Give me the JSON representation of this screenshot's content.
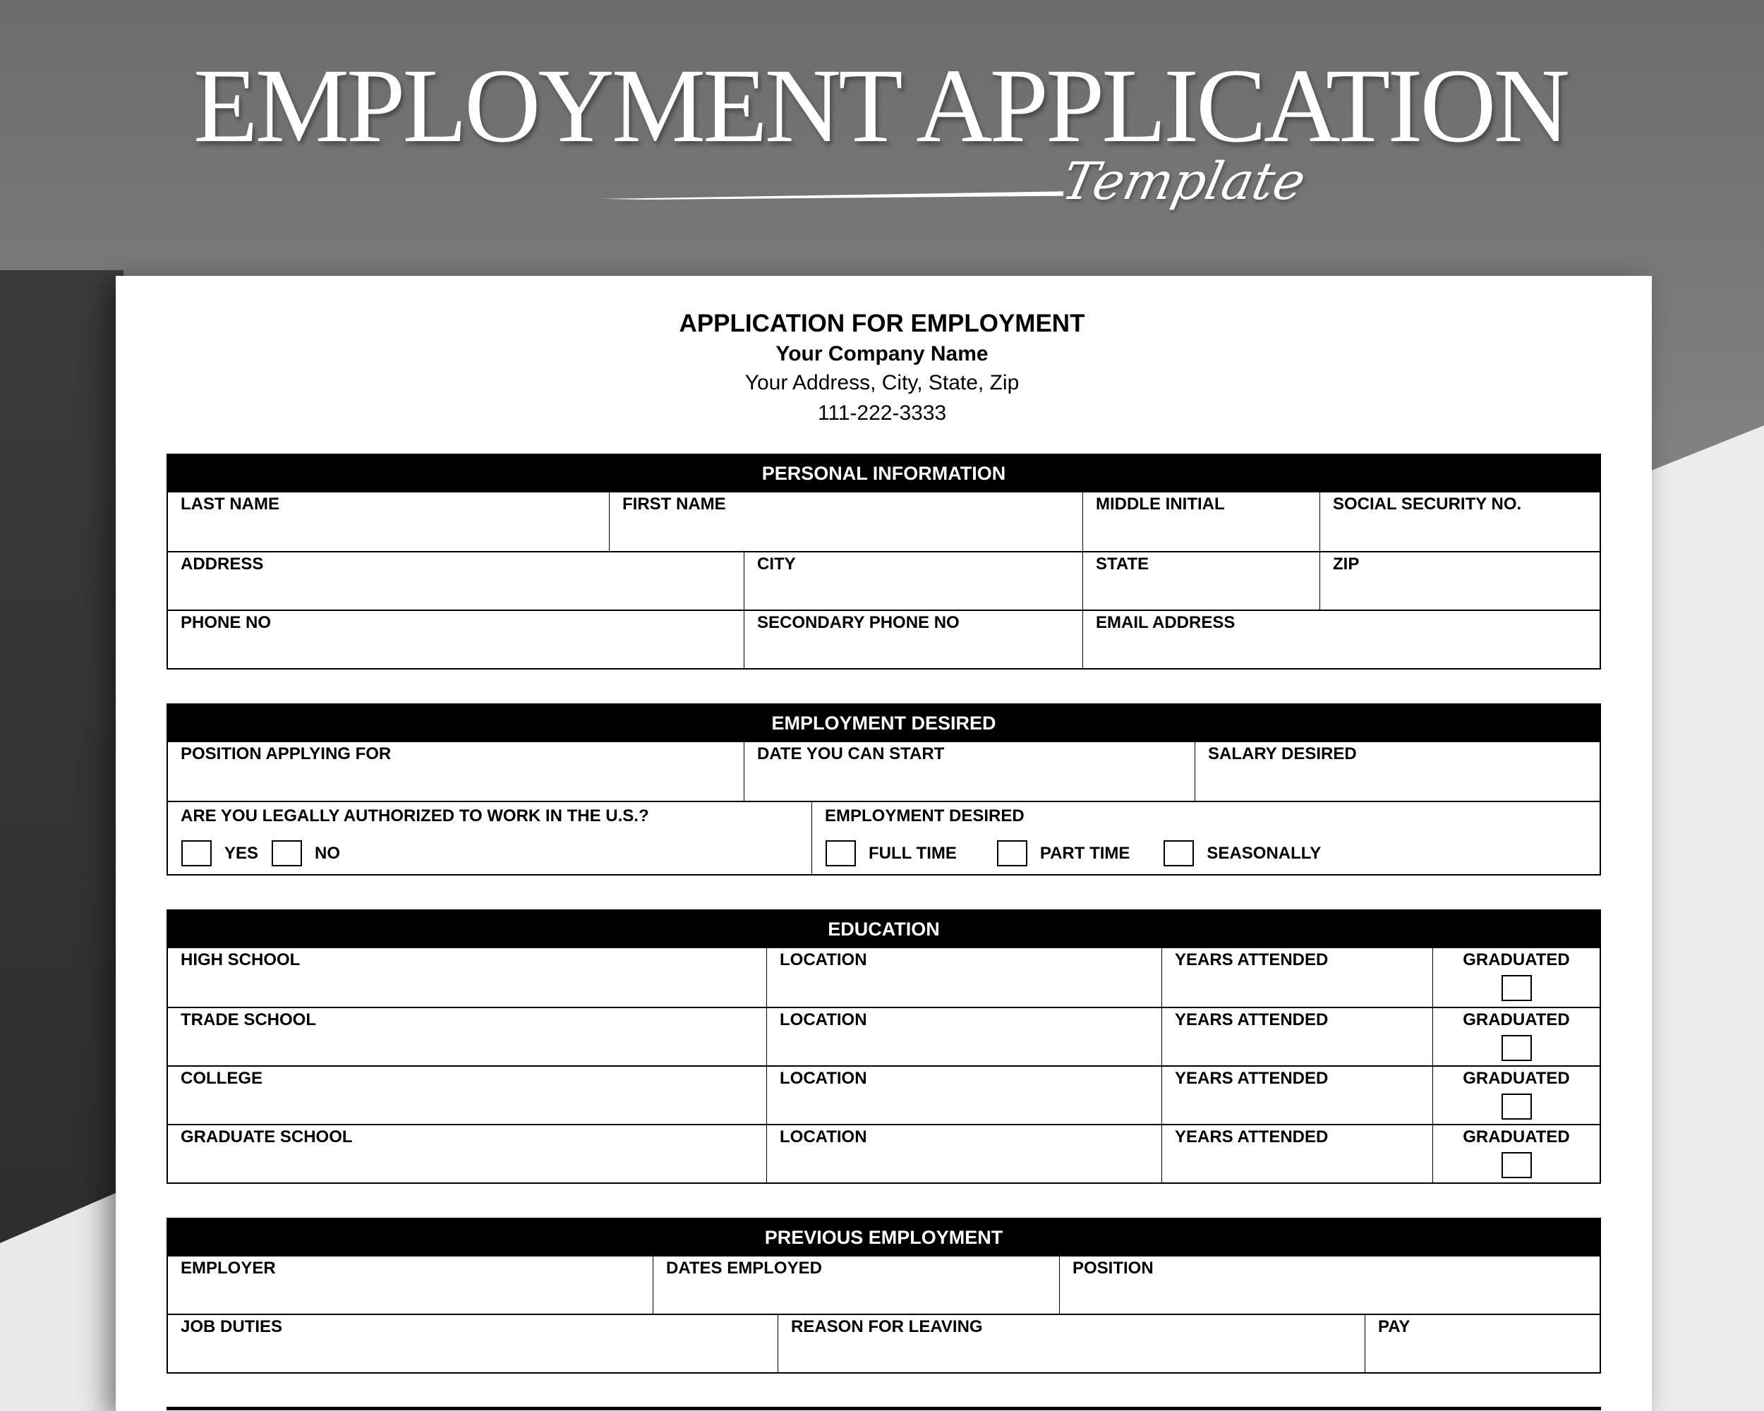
{
  "banner": {
    "title": "EMPLOYMENT APPLICATION",
    "subtitle": "Template"
  },
  "document": {
    "title": "APPLICATION FOR EMPLOYMENT",
    "company": "Your Company Name",
    "address": "Your Address, City, State, Zip",
    "phone": "111-222-3333"
  },
  "personal": {
    "header": "PERSONAL INFORMATION",
    "last_name": "LAST NAME",
    "first_name": "FIRST NAME",
    "middle_initial": "MIDDLE INITIAL",
    "ssn": "SOCIAL SECURITY NO.",
    "address": "ADDRESS",
    "city": "CITY",
    "state": "STATE",
    "zip": "ZIP",
    "phone": "PHONE NO",
    "secondary_phone": "SECONDARY PHONE NO",
    "email": "EMAIL ADDRESS"
  },
  "employment_desired": {
    "header": "EMPLOYMENT DESIRED",
    "position": "POSITION APPLYING FOR",
    "start_date": "DATE YOU CAN START",
    "salary": "SALARY DESIRED",
    "authorized": "ARE YOU LEGALLY AUTHORIZED TO WORK IN THE U.S.?",
    "yes": "YES",
    "no": "NO",
    "type_label": "EMPLOYMENT DESIRED",
    "full_time": "FULL TIME",
    "part_time": "PART TIME",
    "seasonally": "SEASONALLY"
  },
  "education": {
    "header": "EDUCATION",
    "location": "LOCATION",
    "years": "YEARS ATTENDED",
    "graduated": "GRADUATED",
    "schools": [
      "HIGH SCHOOL",
      "TRADE SCHOOL",
      "COLLEGE",
      "GRADUATE SCHOOL"
    ]
  },
  "previous": {
    "header": "PREVIOUS EMPLOYMENT",
    "employer": "EMPLOYER",
    "dates": "DATES EMPLOYED",
    "position": "POSITION",
    "duties": "JOB DUTIES",
    "reason": "REASON FOR LEAVING",
    "pay": "PAY"
  }
}
